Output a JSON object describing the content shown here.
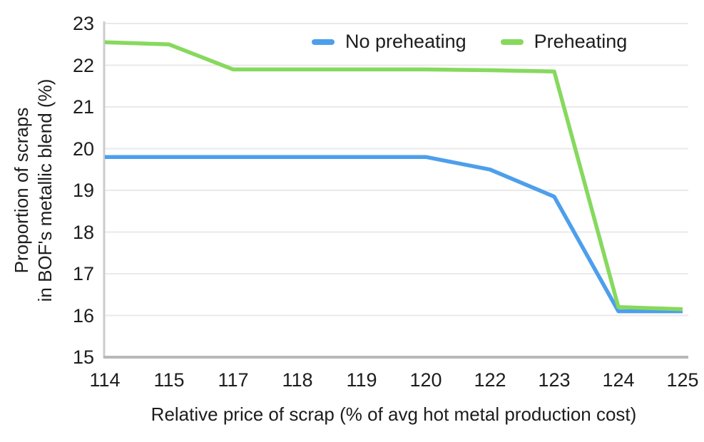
{
  "chart_data": {
    "type": "line",
    "title": "",
    "xlabel": "Relative price of scrap (% of avg hot metal production cost)",
    "ylabel": "Proportion of scraps\nin BOF's metallic blend (%)",
    "categories": [
      "114",
      "115",
      "117",
      "118",
      "119",
      "120",
      "122",
      "123",
      "124",
      "125"
    ],
    "y_ticks": [
      15,
      16,
      17,
      18,
      19,
      20,
      21,
      22,
      23
    ],
    "ylim": [
      15,
      23
    ],
    "grid": "horizontal",
    "legend_position": "top-center",
    "series": [
      {
        "name": "No preheating",
        "color": "#4D9FEC",
        "values": [
          19.8,
          19.8,
          19.8,
          19.8,
          19.8,
          19.8,
          19.5,
          18.85,
          16.1,
          16.1
        ]
      },
      {
        "name": "Preheating",
        "color": "#86D95E",
        "values": [
          22.55,
          22.5,
          21.9,
          21.9,
          21.9,
          21.9,
          21.88,
          21.85,
          16.2,
          16.15
        ]
      }
    ]
  },
  "colors": {
    "text": "#1d1d1d",
    "grid": "#e9e9e9",
    "axis_bottom": "#b8b8b8",
    "axis_left": "#cccccc",
    "background": "#ffffff"
  }
}
